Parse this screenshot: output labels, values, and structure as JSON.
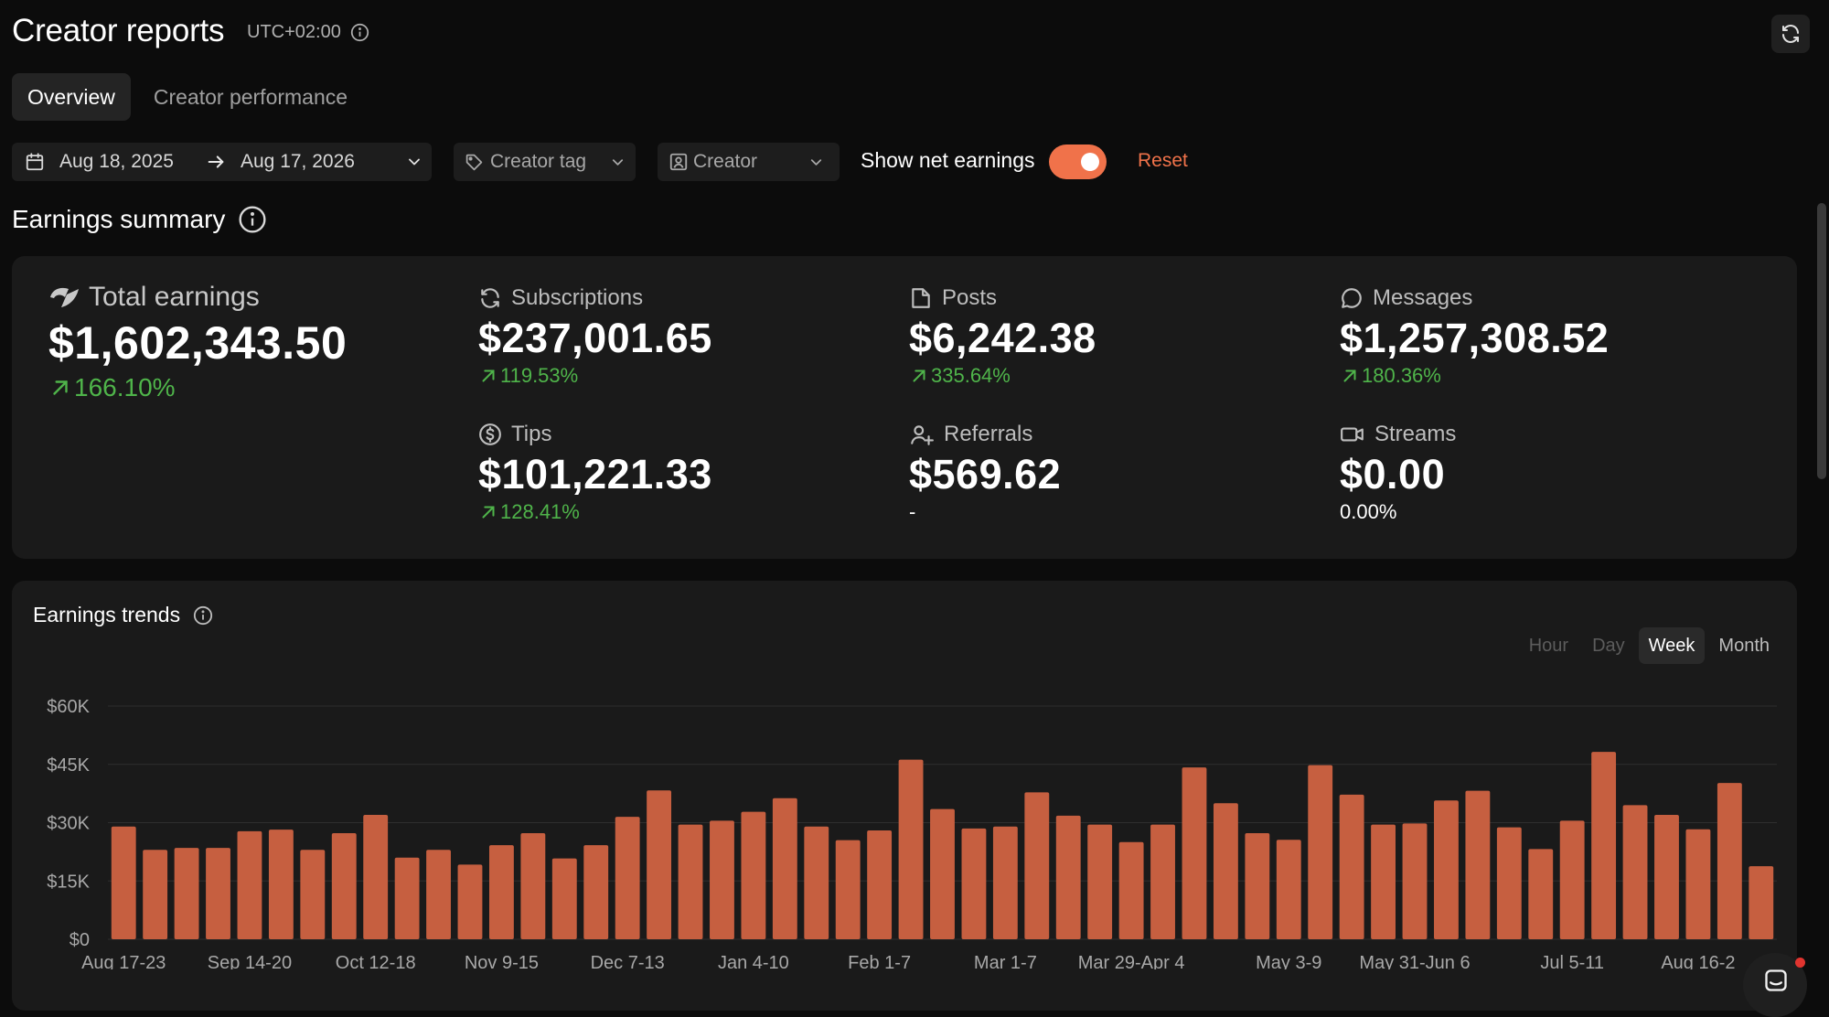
{
  "header": {
    "title": "Creator reports",
    "timezone": "UTC+02:00"
  },
  "tabs": [
    {
      "label": "Overview",
      "active": true
    },
    {
      "label": "Creator performance",
      "active": false
    }
  ],
  "filters": {
    "date_start": "Aug 18, 2025",
    "date_end": "Aug 17, 2026",
    "creator_tag_placeholder": "Creator tag",
    "creator_placeholder": "Creator",
    "net_earnings_label": "Show net earnings",
    "net_earnings_on": true,
    "reset_label": "Reset"
  },
  "summary": {
    "title": "Earnings summary",
    "total": {
      "label": "Total earnings",
      "value": "$1,602,343.50",
      "change": "166.10%"
    },
    "subscriptions": {
      "label": "Subscriptions",
      "value": "$237,001.65",
      "change": "119.53%"
    },
    "posts": {
      "label": "Posts",
      "value": "$6,242.38",
      "change": "335.64%"
    },
    "messages": {
      "label": "Messages",
      "value": "$1,257,308.52",
      "change": "180.36%"
    },
    "tips": {
      "label": "Tips",
      "value": "$101,221.33",
      "change": "128.41%"
    },
    "referrals": {
      "label": "Referrals",
      "value": "$569.62",
      "change": "-"
    },
    "streams": {
      "label": "Streams",
      "value": "$0.00",
      "change": "0.00%"
    }
  },
  "trends": {
    "title": "Earnings trends",
    "granularity": [
      "Hour",
      "Day",
      "Week",
      "Month"
    ],
    "granularity_selected": "Week"
  },
  "colors": {
    "accent": "#f0724a",
    "bar": "#c65f40",
    "positive": "#4fb44a",
    "background": "#0c0c0c",
    "card": "#1a1a1a"
  },
  "chart_data": {
    "type": "bar",
    "title": "",
    "xlabel": "",
    "ylabel": "",
    "ylim": [
      0,
      60000
    ],
    "yticks": [
      "$0",
      "$15K",
      "$30K",
      "$45K",
      "$60K"
    ],
    "ytick_values": [
      0,
      15000,
      30000,
      45000,
      60000
    ],
    "grid": true,
    "x_tick_labels": [
      "Aug 17-23",
      "Sep 14-20",
      "Oct 12-18",
      "Nov 9-15",
      "Dec 7-13",
      "Jan 4-10",
      "Feb 1-7",
      "Mar 1-7",
      "Mar 29-Apr 4",
      "May 3-9",
      "May 31-Jun 6",
      "Jul 5-11",
      "Aug 16-2"
    ],
    "x_tick_bar_index": [
      0,
      4,
      8,
      12,
      16,
      20,
      24,
      28,
      32,
      37,
      41,
      46,
      50
    ],
    "values": [
      29000,
      23000,
      23500,
      23500,
      27800,
      28200,
      23000,
      27300,
      32000,
      21000,
      23000,
      19200,
      24200,
      27300,
      20800,
      24200,
      31500,
      38300,
      29500,
      30500,
      32800,
      36300,
      29000,
      25500,
      28000,
      46200,
      33500,
      28500,
      29000,
      37800,
      31800,
      29500,
      25000,
      29500,
      44200,
      35000,
      27300,
      25600,
      44800,
      37200,
      29500,
      29800,
      35700,
      38200,
      28800,
      23200,
      30500,
      48200,
      34500,
      32000,
      28300,
      40200,
      18800
    ]
  }
}
